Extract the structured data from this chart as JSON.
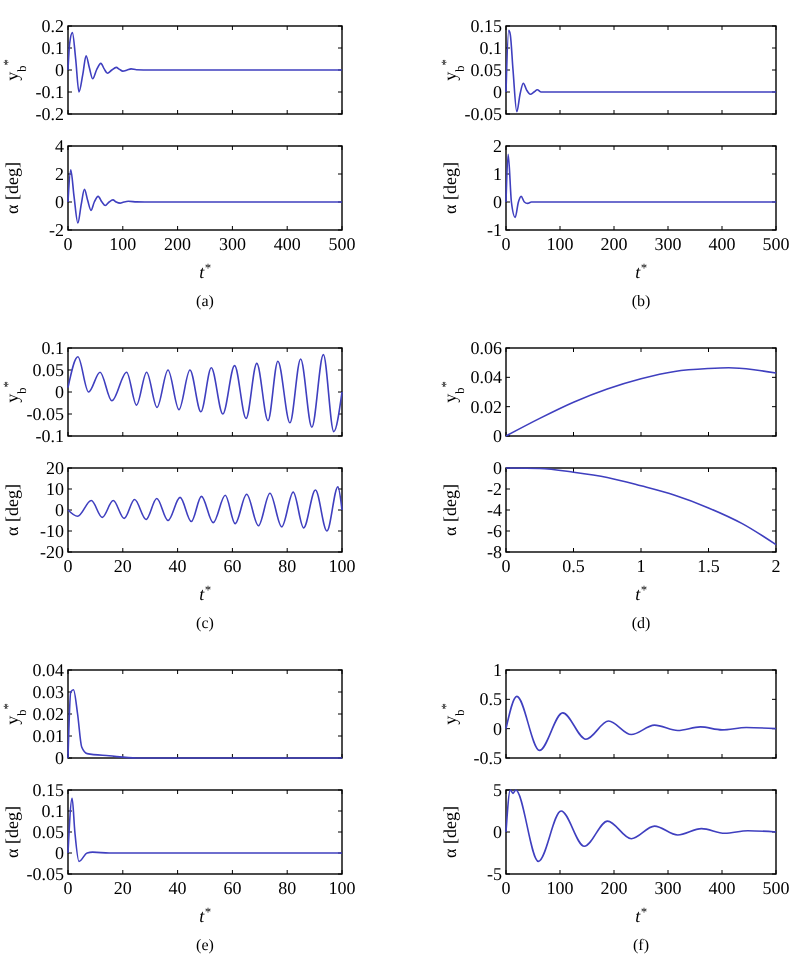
{
  "chart_data": [
    {
      "type": "line",
      "ylabel": "y$_{b}$$^{*}$",
      "tick_labels": "y",
      "color": "#3f3fbf",
      "xlim": [
        0,
        500
      ],
      "xticks": [
        0,
        100,
        200,
        300,
        400,
        500
      ],
      "ylim": [
        -0.2,
        0.2
      ],
      "yticks": [
        -0.2,
        -0.1,
        0,
        0.1,
        0.2
      ],
      "x": [
        0,
        3,
        8,
        14,
        20,
        27,
        33,
        39,
        45,
        52,
        60,
        66,
        72,
        80,
        88,
        94,
        100,
        108,
        115,
        125,
        150,
        200,
        300,
        400,
        500
      ],
      "values": [
        0,
        0.12,
        0.17,
        0.05,
        -0.1,
        -0.02,
        0.065,
        0.01,
        -0.04,
        0,
        0.03,
        0.005,
        -0.015,
        0,
        0.012,
        0.003,
        -0.005,
        0,
        0.005,
        0.001,
        0,
        0,
        0,
        0,
        0
      ]
    },
    {
      "type": "line",
      "ylabel": "α [deg]",
      "xlabel": "t$^{*}$",
      "annotations": [
        "(a)"
      ],
      "color": "#3f3fbf",
      "xlim": [
        0,
        500
      ],
      "xticks": [
        0,
        100,
        200,
        300,
        400,
        500
      ],
      "ylim": [
        -2,
        4
      ],
      "yticks": [
        -2,
        0,
        2,
        4
      ],
      "x": [
        0,
        5,
        11,
        18,
        24,
        30,
        36,
        42,
        48,
        55,
        62,
        68,
        75,
        82,
        88,
        95,
        102,
        110,
        125,
        140,
        200,
        300,
        400,
        500
      ],
      "values": [
        0,
        2.3,
        0.4,
        -1.5,
        -0.2,
        0.9,
        0.1,
        -0.6,
        0,
        0.4,
        0,
        -0.25,
        0,
        0.15,
        0,
        -0.08,
        0,
        0.05,
        0.01,
        0,
        0,
        0,
        0,
        0
      ]
    },
    {
      "type": "line",
      "ylabel": "y$_{b}$$^{*}$",
      "tick_labels": "y",
      "color": "#3f3fbf",
      "xlim": [
        0,
        500
      ],
      "xticks": [
        0,
        100,
        200,
        300,
        400,
        500
      ],
      "ylim": [
        -0.05,
        0.15
      ],
      "yticks": [
        -0.05,
        0,
        0.05,
        0.1,
        0.15
      ],
      "x": [
        0,
        5,
        8,
        13,
        20,
        26,
        32,
        38,
        45,
        52,
        58,
        65,
        70,
        100,
        200,
        300,
        400,
        500
      ],
      "values": [
        0,
        0.14,
        0.13,
        0.05,
        -0.045,
        -0.005,
        0.02,
        0.005,
        -0.005,
        0,
        0.005,
        0,
        0,
        0,
        0,
        0,
        0,
        0
      ]
    },
    {
      "type": "line",
      "ylabel": "α [deg]",
      "xlabel": "t$^{*}$",
      "annotations": [
        "(b)"
      ],
      "color": "#3f3fbf",
      "xlim": [
        0,
        500
      ],
      "xticks": [
        0,
        100,
        200,
        300,
        400,
        500
      ],
      "ylim": [
        -1,
        2
      ],
      "yticks": [
        -1,
        0,
        1,
        2
      ],
      "x": [
        0,
        4,
        10,
        17,
        23,
        28,
        34,
        40,
        47,
        55,
        100,
        200,
        300,
        400,
        500
      ],
      "values": [
        0,
        1.7,
        0,
        -0.55,
        0,
        0.2,
        0,
        -0.05,
        0,
        0,
        0,
        0,
        0,
        0,
        0
      ]
    },
    {
      "type": "line",
      "ylabel": "y$_{b}$$^{*}$",
      "tick_labels": "y",
      "color": "#3f3fbf",
      "xlim": [
        0,
        100
      ],
      "xticks": [
        0,
        20,
        40,
        60,
        80,
        100
      ],
      "ylim": [
        -0.1,
        0.1
      ],
      "yticks": [
        -0.1,
        -0.05,
        0,
        0.05,
        0.1
      ],
      "x": [
        0,
        3.6,
        7.5,
        11.7,
        16,
        21.4,
        25,
        28.7,
        32.5,
        36.5,
        40.5,
        44.5,
        48.5,
        52.3,
        56.5,
        60.8,
        65,
        68.9,
        73,
        76.6,
        81,
        84.9,
        89,
        93.2,
        97,
        100
      ],
      "values": [
        0.01,
        0.08,
        0,
        0.045,
        -0.02,
        0.045,
        -0.03,
        0.045,
        -0.035,
        0.05,
        -0.04,
        0.05,
        -0.045,
        0.055,
        -0.05,
        0.06,
        -0.06,
        0.065,
        -0.065,
        0.07,
        -0.07,
        0.075,
        -0.08,
        0.085,
        -0.09,
        0
      ]
    },
    {
      "type": "line",
      "ylabel": "α [deg]",
      "xlabel": "t$^{*}$",
      "annotations": [
        "(c)"
      ],
      "color": "#3f3fbf",
      "xlim": [
        0,
        100
      ],
      "xticks": [
        0,
        20,
        40,
        60,
        80,
        100
      ],
      "ylim": [
        -20,
        20
      ],
      "yticks": [
        -20,
        -10,
        0,
        10,
        20
      ],
      "x": [
        0,
        3.5,
        8.5,
        12.5,
        16.5,
        20.5,
        24.3,
        28.5,
        32.4,
        36.5,
        40.9,
        45,
        48.7,
        53,
        57.4,
        61,
        65.2,
        69.5,
        73.7,
        78,
        82.2,
        86,
        90.3,
        94.5,
        98.5,
        100
      ],
      "values": [
        0,
        -3,
        4.5,
        -3.5,
        4.5,
        -4,
        5,
        -4.5,
        5.5,
        -5,
        6,
        -5.5,
        6.5,
        -6,
        7,
        -6.5,
        7.5,
        -7.5,
        8,
        -8,
        8.5,
        -8.5,
        9.5,
        -10,
        11,
        0
      ]
    },
    {
      "type": "line",
      "ylabel": "y$_{b}$$^{*}$",
      "tick_labels": "y",
      "color": "#3f3fbf",
      "xlim": [
        0,
        2
      ],
      "xticks": [
        0,
        0.5,
        1,
        1.5,
        2
      ],
      "ylim": [
        0,
        0.06
      ],
      "yticks": [
        0,
        0.02,
        0.04,
        0.06
      ],
      "x": [
        0,
        0.25,
        0.5,
        0.75,
        1,
        1.25,
        1.5,
        1.65,
        1.85,
        2
      ],
      "values": [
        0,
        0.012,
        0.023,
        0.032,
        0.039,
        0.044,
        0.046,
        0.0465,
        0.045,
        0.043
      ]
    },
    {
      "type": "line",
      "ylabel": "α [deg]",
      "xlabel": "t$^{*}$",
      "annotations": [
        "(d)"
      ],
      "color": "#3f3fbf",
      "xlim": [
        0,
        2
      ],
      "xticks": [
        0,
        0.5,
        1,
        1.5,
        2
      ],
      "ylim": [
        -8,
        0
      ],
      "yticks": [
        -8,
        -6,
        -4,
        -2,
        0
      ],
      "x": [
        0,
        0.25,
        0.5,
        0.75,
        1,
        1.25,
        1.5,
        1.75,
        2
      ],
      "values": [
        0,
        -0.05,
        -0.4,
        -0.9,
        -1.7,
        -2.6,
        -3.8,
        -5.3,
        -7.3
      ]
    },
    {
      "type": "line",
      "ylabel": "y$_{b}$$^{*}$",
      "tick_labels": "y",
      "color": "#3f3fbf",
      "xlim": [
        0,
        100
      ],
      "xticks": [
        0,
        20,
        40,
        60,
        80,
        100
      ],
      "ylim": [
        0,
        0.04
      ],
      "yticks": [
        0,
        0.01,
        0.02,
        0.03,
        0.04
      ],
      "x": [
        0,
        1,
        2,
        3.5,
        5,
        7,
        15,
        25,
        50,
        75,
        100
      ],
      "values": [
        0,
        0.03,
        0.031,
        0.02,
        0.005,
        0.002,
        0.001,
        0,
        0,
        0,
        0
      ]
    },
    {
      "type": "line",
      "ylabel": "α [deg]",
      "xlabel": "t$^{*}$",
      "annotations": [
        "(e)"
      ],
      "color": "#3f3fbf",
      "xlim": [
        0,
        100
      ],
      "xticks": [
        0,
        20,
        40,
        60,
        80,
        100
      ],
      "ylim": [
        -0.05,
        0.15
      ],
      "yticks": [
        -0.05,
        0,
        0.05,
        0.1,
        0.15
      ],
      "x": [
        0,
        1.5,
        2.5,
        4,
        7,
        9,
        15,
        50,
        100
      ],
      "values": [
        0,
        0.13,
        0.05,
        -0.02,
        0,
        0.002,
        0,
        0,
        0
      ]
    },
    {
      "type": "line",
      "ylabel": "y$_{b}$$^{*}$",
      "tick_labels": "y",
      "color": "#3f3fbf",
      "xlim": [
        0,
        500
      ],
      "xticks": [
        0,
        100,
        200,
        300,
        400,
        500
      ],
      "ylim": [
        -0.5,
        1
      ],
      "yticks": [
        -0.5,
        0,
        0.5,
        1
      ],
      "x": [
        0,
        20,
        62,
        105,
        148,
        190,
        232,
        275,
        318,
        360,
        400,
        445,
        500
      ],
      "values": [
        0,
        0.55,
        -0.37,
        0.27,
        -0.18,
        0.13,
        -0.1,
        0.06,
        -0.03,
        0.03,
        -0.02,
        0.02,
        0
      ]
    },
    {
      "type": "line",
      "ylabel": "α [deg]",
      "xlabel": "t$^{*}$",
      "annotations": [
        "(f)"
      ],
      "color": "#3f3fbf",
      "xlim": [
        0,
        500
      ],
      "xticks": [
        0,
        100,
        200,
        300,
        400,
        500
      ],
      "ylim": [
        -5,
        5
      ],
      "yticks": [
        -5,
        0,
        5
      ],
      "x": [
        0,
        8,
        13,
        18,
        60,
        102,
        145,
        188,
        232,
        275,
        318,
        362,
        405,
        448,
        500
      ],
      "values": [
        0,
        5,
        4.6,
        5,
        -3.5,
        2.5,
        -1.7,
        1.3,
        -0.8,
        0.7,
        -0.35,
        0.4,
        -0.15,
        0.15,
        0
      ]
    }
  ]
}
